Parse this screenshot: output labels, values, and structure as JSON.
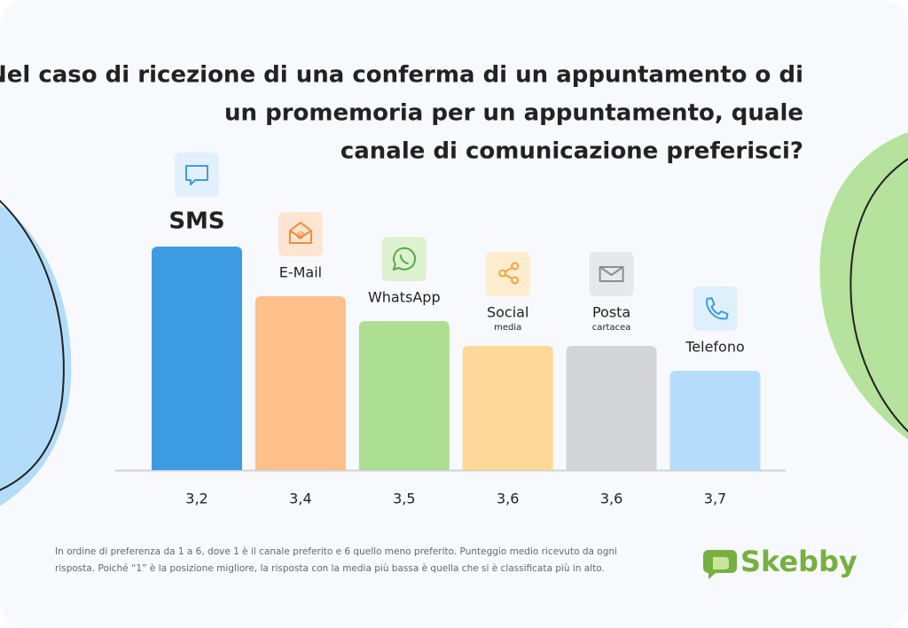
{
  "chart_data": {
    "type": "bar",
    "title": [
      "Nel caso di ricezione di una conferma di un appuntamento o di",
      "un promemoria per un appuntamento, quale",
      "canale di comunicazione preferisci?"
    ],
    "categories": [
      "SMS",
      "E-Mail",
      "WhatsApp",
      "Social",
      "Posta",
      "Telefono"
    ],
    "category_sublabels": [
      null,
      null,
      null,
      "media",
      "cartacea",
      null
    ],
    "values": [
      3.2,
      3.4,
      3.5,
      3.6,
      3.6,
      3.7
    ],
    "value_labels": [
      "3,2",
      "3,4",
      "3,5",
      "3,6",
      "3,6",
      "3,7"
    ],
    "colors": [
      "#3d9be3",
      "#fdc08a",
      "#addf93",
      "#fdd898",
      "#d3d5d8",
      "#b5ddfb"
    ],
    "ylim": [
      4.1,
      3.0
    ],
    "footnote": [
      "In ordine di preferenza da 1 a 6, dove 1 è il canale preferito e 6 quello meno preferito. Punteggio medio ricevuto da ogni",
      "risposta. Poiché “1” è la posizione migliore, la risposta con la media più bassa è quella che si è classificata più in alto."
    ],
    "brand": "Skebby"
  }
}
